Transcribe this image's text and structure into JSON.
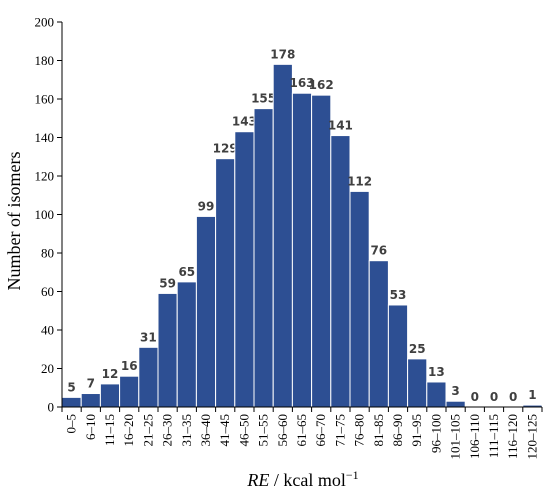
{
  "chart_data": {
    "type": "bar",
    "xlabel_italic": "RE",
    "xlabel_rest": " / kcal mol",
    "xlabel_sup": "−1",
    "ylabel": "Number of isomers",
    "ylim": [
      0,
      200
    ],
    "yticks": [
      0,
      20,
      40,
      60,
      80,
      100,
      120,
      140,
      160,
      180,
      200
    ],
    "grid": false,
    "bar_color": "#2d4f93",
    "categories": [
      "0–5",
      "6–10",
      "11–15",
      "16–20",
      "21–25",
      "26–30",
      "31–35",
      "36–40",
      "41–45",
      "46–50",
      "51–55",
      "56–60",
      "61–65",
      "66–70",
      "71–75",
      "76–80",
      "81–85",
      "86–90",
      "91–95",
      "96–100",
      "101–105",
      "106–110",
      "111–115",
      "116–120",
      "120–125"
    ],
    "values": [
      5,
      7,
      12,
      16,
      31,
      59,
      65,
      99,
      129,
      143,
      155,
      178,
      163,
      162,
      141,
      112,
      76,
      53,
      25,
      13,
      3,
      0,
      0,
      0,
      1
    ]
  }
}
